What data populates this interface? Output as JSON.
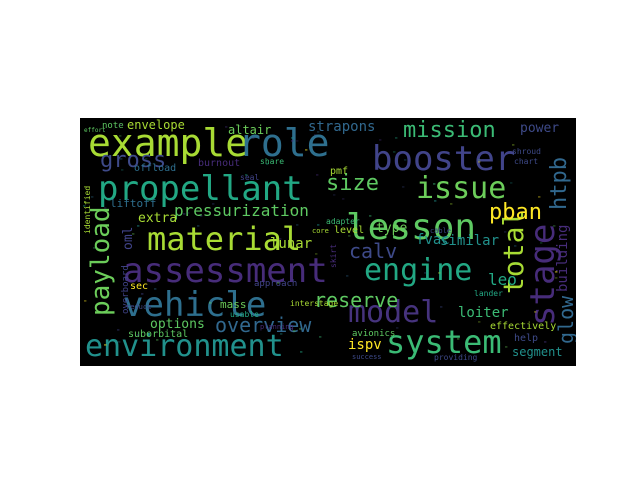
{
  "palette": {
    "background": "#000000",
    "page": "#ffffff",
    "colors": [
      "#a8db34",
      "#2e6f8e",
      "#41448a",
      "#3bbb75",
      "#22a884",
      "#472c7a",
      "#6ccd5a",
      "#fde725",
      "#21918c",
      "#31688e",
      "#3e4a89",
      "#5ec962",
      "#46337e"
    ]
  },
  "words": [
    {
      "id": "example",
      "text": "example",
      "color": "#a8db34"
    },
    {
      "id": "role",
      "text": "role",
      "color": "#2e6f8e"
    },
    {
      "id": "booster",
      "text": "booster",
      "color": "#41448a"
    },
    {
      "id": "mission",
      "text": "mission",
      "color": "#3bbb75"
    },
    {
      "id": "propellant",
      "text": "propellant",
      "color": "#22a884"
    },
    {
      "id": "issue",
      "text": "issue",
      "color": "#6ccd5a"
    },
    {
      "id": "material",
      "text": "material",
      "color": "#a8db34"
    },
    {
      "id": "lesson",
      "text": "lesson",
      "color": "#5ec962"
    },
    {
      "id": "assessment",
      "text": "assessment",
      "color": "#472c7a"
    },
    {
      "id": "engine",
      "text": "engine",
      "color": "#22a884"
    },
    {
      "id": "vehicle",
      "text": "vehicle",
      "color": "#2e6f8e"
    },
    {
      "id": "model",
      "text": "model",
      "color": "#46337e"
    },
    {
      "id": "environment",
      "text": "environment",
      "color": "#21918c"
    },
    {
      "id": "system",
      "text": "system",
      "color": "#3bbb75"
    },
    {
      "id": "stage",
      "text": "stage",
      "color": "#472c7a"
    },
    {
      "id": "payload",
      "text": "payload",
      "color": "#6ccd5a"
    },
    {
      "id": "total",
      "text": "total",
      "color": "#a8db34"
    },
    {
      "id": "glow",
      "text": "glow",
      "color": "#31688e"
    },
    {
      "id": "htpb",
      "text": "htpb",
      "color": "#31688e"
    },
    {
      "id": "pban",
      "text": "pban",
      "color": "#fde725"
    },
    {
      "id": "size",
      "text": "size",
      "color": "#5ec962"
    },
    {
      "id": "gross",
      "text": "gross",
      "color": "#3e4a89"
    },
    {
      "id": "calv",
      "text": "calv",
      "color": "#3e4a89"
    },
    {
      "id": "overview",
      "text": "overview",
      "color": "#31688e"
    },
    {
      "id": "reserve",
      "text": "reserve",
      "color": "#5ec962"
    },
    {
      "id": "pressurization",
      "text": "pressurization",
      "color": "#5ec962"
    },
    {
      "id": "strapons",
      "text": "strapons",
      "color": "#31688e"
    },
    {
      "id": "envelope",
      "text": "envelope",
      "color": "#a8db34"
    },
    {
      "id": "altair",
      "text": "altair",
      "color": "#6ccd5a"
    },
    {
      "id": "power",
      "text": "power",
      "color": "#3e4a89"
    },
    {
      "id": "options",
      "text": "options",
      "color": "#5ec962"
    },
    {
      "id": "extra",
      "text": "extra",
      "color": "#a8db34"
    },
    {
      "id": "oml",
      "text": "oml",
      "color": "#41448a"
    },
    {
      "id": "lunar",
      "text": "lunar",
      "color": "#a8db34"
    },
    {
      "id": "type",
      "text": "type",
      "color": "#6ccd5a"
    },
    {
      "id": "fvac",
      "text": "fvac",
      "color": "#21918c"
    },
    {
      "id": "similar",
      "text": "similar",
      "color": "#21918c"
    },
    {
      "id": "building",
      "text": "building",
      "color": "#472c7a"
    },
    {
      "id": "leo",
      "text": "leo",
      "color": "#22a884"
    },
    {
      "id": "loiter",
      "text": "loiter",
      "color": "#3bbb75"
    },
    {
      "id": "ispv",
      "text": "ispv",
      "color": "#fde725"
    },
    {
      "id": "segment",
      "text": "segment",
      "color": "#21918c"
    },
    {
      "id": "suborbital",
      "text": "suborbital",
      "color": "#5ec962"
    },
    {
      "id": "overboard",
      "text": "overboard",
      "color": "#41448a"
    },
    {
      "id": "liftoff",
      "text": "liftoff",
      "color": "#2e6f8e"
    },
    {
      "id": "offload",
      "text": "offload",
      "color": "#2e6f8e"
    },
    {
      "id": "burnout",
      "text": "burnout",
      "color": "#472c7a"
    },
    {
      "id": "mass",
      "text": "mass",
      "color": "#6ccd5a"
    },
    {
      "id": "sec",
      "text": "sec",
      "color": "#fde725"
    },
    {
      "id": "level",
      "text": "level",
      "color": "#a8db34"
    },
    {
      "id": "interstage",
      "text": "interstage",
      "color": "#a8db34"
    },
    {
      "id": "avionics",
      "text": "avionics",
      "color": "#5ec962"
    },
    {
      "id": "approach",
      "text": "approach",
      "color": "#41448a"
    },
    {
      "id": "effectively",
      "text": "effectively",
      "color": "#a8db34"
    },
    {
      "id": "help",
      "text": "help",
      "color": "#3e4a89"
    },
    {
      "id": "note",
      "text": "note",
      "color": "#5ec962"
    },
    {
      "id": "pmf",
      "text": "pmf",
      "color": "#a8db34"
    },
    {
      "id": "adapter",
      "text": "adapter",
      "color": "#3bbb75"
    },
    {
      "id": "usable",
      "text": "usable",
      "color": "#22a884"
    },
    {
      "id": "lander",
      "text": "lander",
      "color": "#22a884"
    },
    {
      "id": "providing",
      "text": "providing",
      "color": "#3e4a89"
    },
    {
      "id": "success",
      "text": "success",
      "color": "#3e4a89"
    },
    {
      "id": "reduce",
      "text": "reduce",
      "color": "#3e4a89"
    },
    {
      "id": "planning",
      "text": "planning",
      "color": "#472c7a"
    },
    {
      "id": "core",
      "text": "core",
      "color": "#a8db34"
    },
    {
      "id": "seal",
      "text": "seal",
      "color": "#41448a"
    },
    {
      "id": "share",
      "text": "share",
      "color": "#3bbb75"
    },
    {
      "id": "identified",
      "text": "identified",
      "color": "#a8db34"
    },
    {
      "id": "shroud",
      "text": "shroud",
      "color": "#3e4a89"
    },
    {
      "id": "chart",
      "text": "chart",
      "color": "#3e4a89"
    },
    {
      "id": "skirt",
      "text": "skirt",
      "color": "#472c7a"
    },
    {
      "id": "cable",
      "text": "cable",
      "color": "#3e4a89"
    },
    {
      "id": "effort",
      "text": "effort",
      "color": "#5ec962"
    }
  ]
}
